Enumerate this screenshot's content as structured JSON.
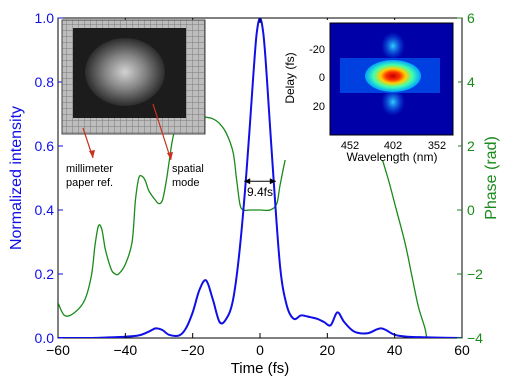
{
  "chart_data": {
    "type": "line",
    "xlabel": "Time (fs)",
    "ylabel_left": "Normalized intensity",
    "ylabel_right": "Phase (rad)",
    "xlim": [
      -60,
      60
    ],
    "ylim_left": [
      0,
      1.0
    ],
    "ylim_right": [
      -4,
      6
    ],
    "x_ticks": [
      "-60",
      "-40",
      "-20",
      "0",
      "20",
      "40",
      "60"
    ],
    "y_ticks_left": [
      "0.0",
      "0.2",
      "0.4",
      "0.6",
      "0.8",
      "1.0"
    ],
    "y_ticks_right": [
      "-4",
      "-2",
      "0",
      "2",
      "4",
      "6"
    ],
    "colors": {
      "intensity": "#1010e6",
      "phase": "#1a8a1a",
      "annotation_arrow": "#c8321e"
    },
    "series": [
      {
        "axis": "left",
        "x": [
          -60,
          -50,
          -45,
          -40,
          -36,
          -33,
          -31,
          -29,
          -27,
          -24,
          -22,
          -20,
          -18,
          -16,
          -14,
          -12,
          -10,
          -8,
          -6,
          -4,
          -2,
          -1,
          0,
          1,
          2,
          4,
          6,
          8,
          10,
          12,
          13,
          15,
          17,
          19,
          21,
          23,
          25,
          28,
          32,
          36,
          40,
          44,
          50,
          60
        ],
        "values": [
          0.0,
          0.0,
          0.002,
          0.004,
          0.008,
          0.02,
          0.03,
          0.025,
          0.01,
          0.008,
          0.03,
          0.08,
          0.15,
          0.18,
          0.12,
          0.05,
          0.06,
          0.12,
          0.28,
          0.52,
          0.82,
          0.95,
          1.0,
          0.95,
          0.82,
          0.5,
          0.22,
          0.1,
          0.06,
          0.07,
          0.07,
          0.065,
          0.06,
          0.05,
          0.04,
          0.08,
          0.05,
          0.02,
          0.015,
          0.03,
          0.01,
          0.004,
          0.002,
          0.0
        ]
      },
      {
        "axis": "right",
        "x": [
          -60,
          -58,
          -55,
          -52,
          -50,
          -49,
          -48,
          -47,
          -46,
          -45,
          -44,
          -43,
          -42,
          -40,
          -38,
          -37,
          -36,
          -35,
          -34,
          -33,
          -31,
          -30,
          -29,
          -28,
          -27,
          -26,
          -25,
          -23,
          -22,
          -21,
          -20,
          -18,
          -16,
          -14,
          -12,
          -10,
          -8,
          -7,
          -6,
          -5,
          -3,
          0,
          3,
          5,
          6,
          8,
          10,
          12,
          15,
          18,
          20,
          25,
          28,
          30,
          32,
          35,
          38,
          40,
          43,
          45,
          47,
          49,
          50,
          52
        ],
        "values": [
          -2.9,
          -3.3,
          -3.2,
          -2.8,
          -2.0,
          -1.1,
          -0.5,
          -0.6,
          -1.2,
          -1.6,
          -1.9,
          -2.0,
          -2.0,
          -1.7,
          -1.0,
          0.3,
          1.0,
          1.05,
          0.9,
          0.6,
          0.3,
          0.2,
          0.3,
          0.8,
          1.5,
          2.2,
          2.6,
          3.1,
          3.25,
          3.15,
          3.0,
          2.95,
          2.9,
          2.85,
          2.7,
          2.4,
          1.8,
          1.0,
          0.2,
          0.0,
          0.0,
          0.0,
          0.0,
          0.2,
          0.8,
          1.8,
          2.4,
          2.8,
          3.0,
          3.1,
          3.15,
          3.15,
          3.05,
          3.1,
          2.7,
          2.0,
          1.0,
          0.2,
          -1.0,
          -2.0,
          -3.0,
          -3.7,
          -4.2,
          -4.5
        ]
      }
    ],
    "annotations": [
      {
        "label": "9.4fs",
        "x_from": -4.7,
        "x_to": 4.7,
        "y": 0.49
      }
    ]
  },
  "inset_left": {
    "labels": [
      "millimeter",
      "paper ref.",
      "spatial",
      "mode"
    ]
  },
  "inset_right": {
    "xlabel": "Wavelength (nm)",
    "ylabel": "Delay (fs)",
    "x_ticks": [
      "452",
      "402",
      "352"
    ],
    "y_ticks": [
      "-20",
      "0",
      "20"
    ]
  }
}
